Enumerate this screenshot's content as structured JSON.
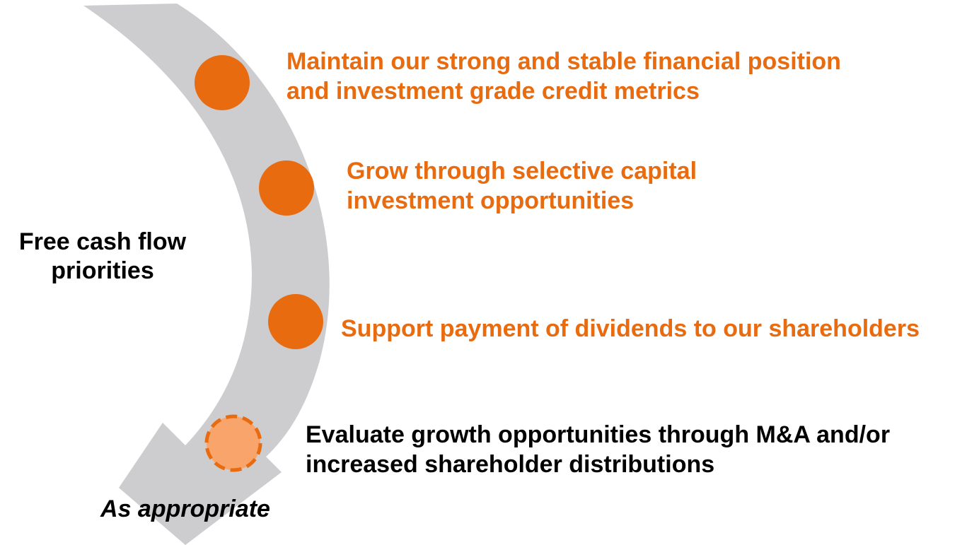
{
  "center_label": {
    "lines": [
      "Free cash flow",
      "priorities"
    ]
  },
  "items": [
    {
      "lines": [
        "Maintain our strong and stable financial position",
        "and investment grade credit metrics"
      ]
    },
    {
      "lines": [
        "Grow through selective capital",
        "investment opportunities"
      ]
    },
    {
      "lines": [
        "Support payment of dividends to our shareholders"
      ]
    },
    {
      "lines": [
        "Evaluate growth opportunities through M&A and/or",
        "increased shareholder distributions"
      ]
    }
  ],
  "footnote": "As appropriate"
}
